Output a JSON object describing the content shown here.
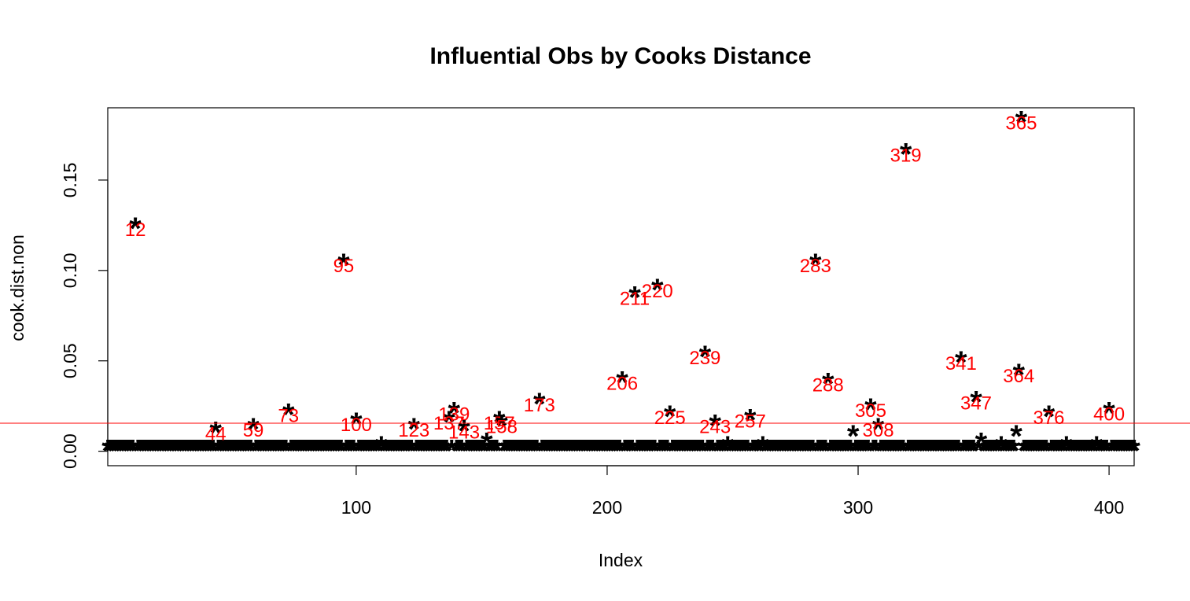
{
  "chart_data": {
    "type": "scatter",
    "title": "Influential Obs by Cooks Distance",
    "xlabel": "Index",
    "ylabel": "cook.dist.non",
    "xlim": [
      1,
      410
    ],
    "ylim": [
      -0.008,
      0.19
    ],
    "x_ticks": [
      "100",
      "200",
      "300",
      "400"
    ],
    "x_tick_values": [
      100,
      200,
      300,
      400
    ],
    "y_ticks": [
      "0.00",
      "0.05",
      "0.10",
      "0.15"
    ],
    "y_tick_values": [
      0,
      0.05,
      0.1,
      0.15
    ],
    "marker": "*",
    "marker_color": "#000000",
    "label_color": "#ff0000",
    "reference_line": {
      "y": 0.0155,
      "color": "#ff0000"
    },
    "points": [
      {
        "x": 12,
        "y": 0.123,
        "label": "12"
      },
      {
        "x": 44,
        "y": 0.01,
        "label": "44"
      },
      {
        "x": 59,
        "y": 0.012,
        "label": "59"
      },
      {
        "x": 73,
        "y": 0.02,
        "label": "73"
      },
      {
        "x": 95,
        "y": 0.103,
        "label": "95"
      },
      {
        "x": 100,
        "y": 0.015,
        "label": "100"
      },
      {
        "x": 123,
        "y": 0.012,
        "label": "123"
      },
      {
        "x": 137,
        "y": 0.016,
        "label": "137"
      },
      {
        "x": 139,
        "y": 0.021,
        "label": "139"
      },
      {
        "x": 143,
        "y": 0.011,
        "label": "143"
      },
      {
        "x": 157,
        "y": 0.016,
        "label": "157"
      },
      {
        "x": 158,
        "y": 0.014,
        "label": "158"
      },
      {
        "x": 173,
        "y": 0.026,
        "label": "173"
      },
      {
        "x": 206,
        "y": 0.038,
        "label": "206"
      },
      {
        "x": 211,
        "y": 0.085,
        "label": "211"
      },
      {
        "x": 220,
        "y": 0.089,
        "label": "220"
      },
      {
        "x": 225,
        "y": 0.019,
        "label": "225"
      },
      {
        "x": 239,
        "y": 0.052,
        "label": "239"
      },
      {
        "x": 243,
        "y": 0.014,
        "label": "243"
      },
      {
        "x": 257,
        "y": 0.017,
        "label": "257"
      },
      {
        "x": 283,
        "y": 0.103,
        "label": "283"
      },
      {
        "x": 288,
        "y": 0.037,
        "label": "288"
      },
      {
        "x": 305,
        "y": 0.023,
        "label": "305"
      },
      {
        "x": 308,
        "y": 0.012,
        "label": "308"
      },
      {
        "x": 319,
        "y": 0.164,
        "label": "319"
      },
      {
        "x": 341,
        "y": 0.049,
        "label": "341"
      },
      {
        "x": 347,
        "y": 0.027,
        "label": "347"
      },
      {
        "x": 364,
        "y": 0.042,
        "label": "364"
      },
      {
        "x": 365,
        "y": 0.182,
        "label": "365"
      },
      {
        "x": 376,
        "y": 0.019,
        "label": "376"
      },
      {
        "x": 400,
        "y": 0.021,
        "label": "400"
      }
    ],
    "minor_points": [
      {
        "x": 110,
        "y": 0.002
      },
      {
        "x": 152,
        "y": 0.004
      },
      {
        "x": 248,
        "y": 0.002
      },
      {
        "x": 262,
        "y": 0.002
      },
      {
        "x": 298,
        "y": 0.008
      },
      {
        "x": 349,
        "y": 0.004
      },
      {
        "x": 357,
        "y": 0.002
      },
      {
        "x": 363,
        "y": 0.008
      },
      {
        "x": 383,
        "y": 0.002
      },
      {
        "x": 395,
        "y": 0.002
      }
    ],
    "baseline_y": 0.0
  }
}
